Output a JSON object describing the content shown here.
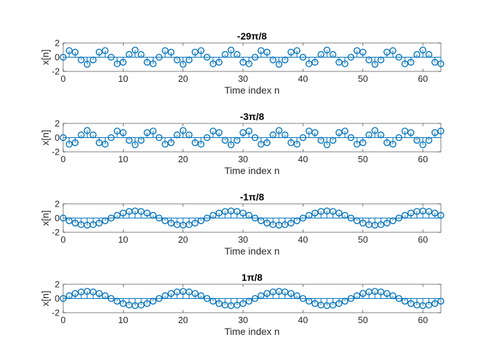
{
  "chart_data": [
    {
      "type": "stem",
      "title": "-29π/8",
      "omega": "-29*pi/8",
      "x": {
        "start": 0,
        "end": 63,
        "step": 1
      },
      "xlabel": "Time index n",
      "ylabel": "x[n]",
      "xlim": [
        0,
        63
      ],
      "ylim": [
        -2,
        2
      ],
      "xticks": [
        0,
        10,
        20,
        30,
        40,
        50,
        60
      ],
      "yticks": [
        -2,
        0,
        2
      ],
      "grid": false
    },
    {
      "type": "stem",
      "title": "-3π/8",
      "omega": "-3*pi/8",
      "x": {
        "start": 0,
        "end": 63,
        "step": 1
      },
      "xlabel": "Time index n",
      "ylabel": "x[n]",
      "xlim": [
        0,
        63
      ],
      "ylim": [
        -2,
        2
      ],
      "xticks": [
        0,
        10,
        20,
        30,
        40,
        50,
        60
      ],
      "yticks": [
        -2,
        0,
        2
      ],
      "grid": false
    },
    {
      "type": "stem",
      "title": "-1π/8",
      "omega": "-1*pi/8",
      "x": {
        "start": 0,
        "end": 63,
        "step": 1
      },
      "xlabel": "Time index n",
      "ylabel": "x[n]",
      "xlim": [
        0,
        63
      ],
      "ylim": [
        -2,
        2
      ],
      "xticks": [
        0,
        10,
        20,
        30,
        40,
        50,
        60
      ],
      "yticks": [
        -2,
        0,
        2
      ],
      "grid": false
    },
    {
      "type": "stem",
      "title": "1π/8",
      "omega": "1*pi/8",
      "x": {
        "start": 0,
        "end": 63,
        "step": 1
      },
      "xlabel": "Time index n",
      "ylabel": "x[n]",
      "xlim": [
        0,
        63
      ],
      "ylim": [
        -2,
        2
      ],
      "xticks": [
        0,
        10,
        20,
        30,
        40,
        50,
        60
      ],
      "yticks": [
        -2,
        0,
        2
      ],
      "grid": false
    }
  ],
  "colors": {
    "stem": "#0072BD",
    "axes": "#262626",
    "background": "#ffffff"
  }
}
